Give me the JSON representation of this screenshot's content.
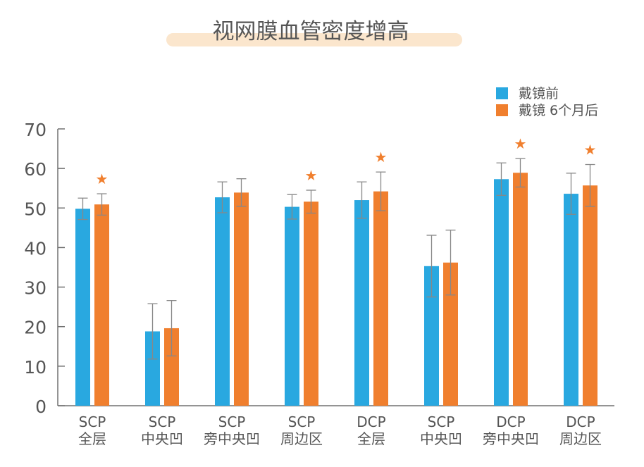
{
  "chart_data": {
    "type": "bar",
    "title": "视网膜血管密度增高",
    "xlabel": "",
    "ylabel": "",
    "ylim": [
      0,
      70
    ],
    "yticks": [
      0,
      10,
      20,
      30,
      40,
      50,
      60,
      70
    ],
    "grid": false,
    "legend_position": "top-right",
    "categories": [
      {
        "line1": "SCP",
        "line2": "全层"
      },
      {
        "line1": "SCP",
        "line2": "中央凹"
      },
      {
        "line1": "SCP",
        "line2": "旁中央凹"
      },
      {
        "line1": "SCP",
        "line2": "周边区"
      },
      {
        "line1": "DCP",
        "line2": "全层"
      },
      {
        "line1": "SCP",
        "line2": "中央凹"
      },
      {
        "line1": "DCP",
        "line2": "旁中央凹"
      },
      {
        "line1": "DCP",
        "line2": "周边区"
      }
    ],
    "series": [
      {
        "name": "戴镜前",
        "color": "#29a8e0",
        "values": [
          49.8,
          18.8,
          52.7,
          50.3,
          52.0,
          35.3,
          57.3,
          53.6
        ],
        "error": [
          2.7,
          7.0,
          3.9,
          3.1,
          4.6,
          7.8,
          4.1,
          5.2
        ]
      },
      {
        "name": "戴镜 6个月后",
        "color": "#f07f2e",
        "values": [
          50.9,
          19.6,
          53.9,
          51.6,
          54.2,
          36.2,
          58.9,
          55.7
        ],
        "error": [
          2.7,
          7.0,
          3.5,
          2.9,
          4.9,
          8.2,
          3.6,
          5.3
        ]
      }
    ],
    "significance_marker": "★",
    "significance_color": "#f07f2e",
    "significant_categories": [
      0,
      3,
      4,
      6,
      7
    ],
    "axis_color": "#707070",
    "error_bar_color": "#888888",
    "title_highlight_color": "#fbe6cd",
    "text_color": "#555555"
  }
}
